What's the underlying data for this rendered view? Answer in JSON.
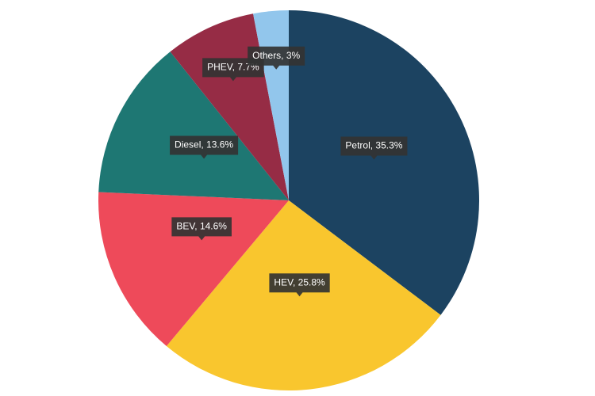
{
  "chart_data": {
    "type": "pie",
    "labels": [
      "Petrol, 35.3%",
      "HEV, 25.8%",
      "BEV, 14.6%",
      "Diesel, 13.6%",
      "PHEV, 7.7%",
      "Others, 3%"
    ],
    "values": [
      35.3,
      25.8,
      14.6,
      13.6,
      7.7,
      3
    ],
    "colors": [
      "#1c4361",
      "#f9c62e",
      "#ee4a5a",
      "#1e7773",
      "#962c45",
      "#92c6ec"
    ]
  }
}
